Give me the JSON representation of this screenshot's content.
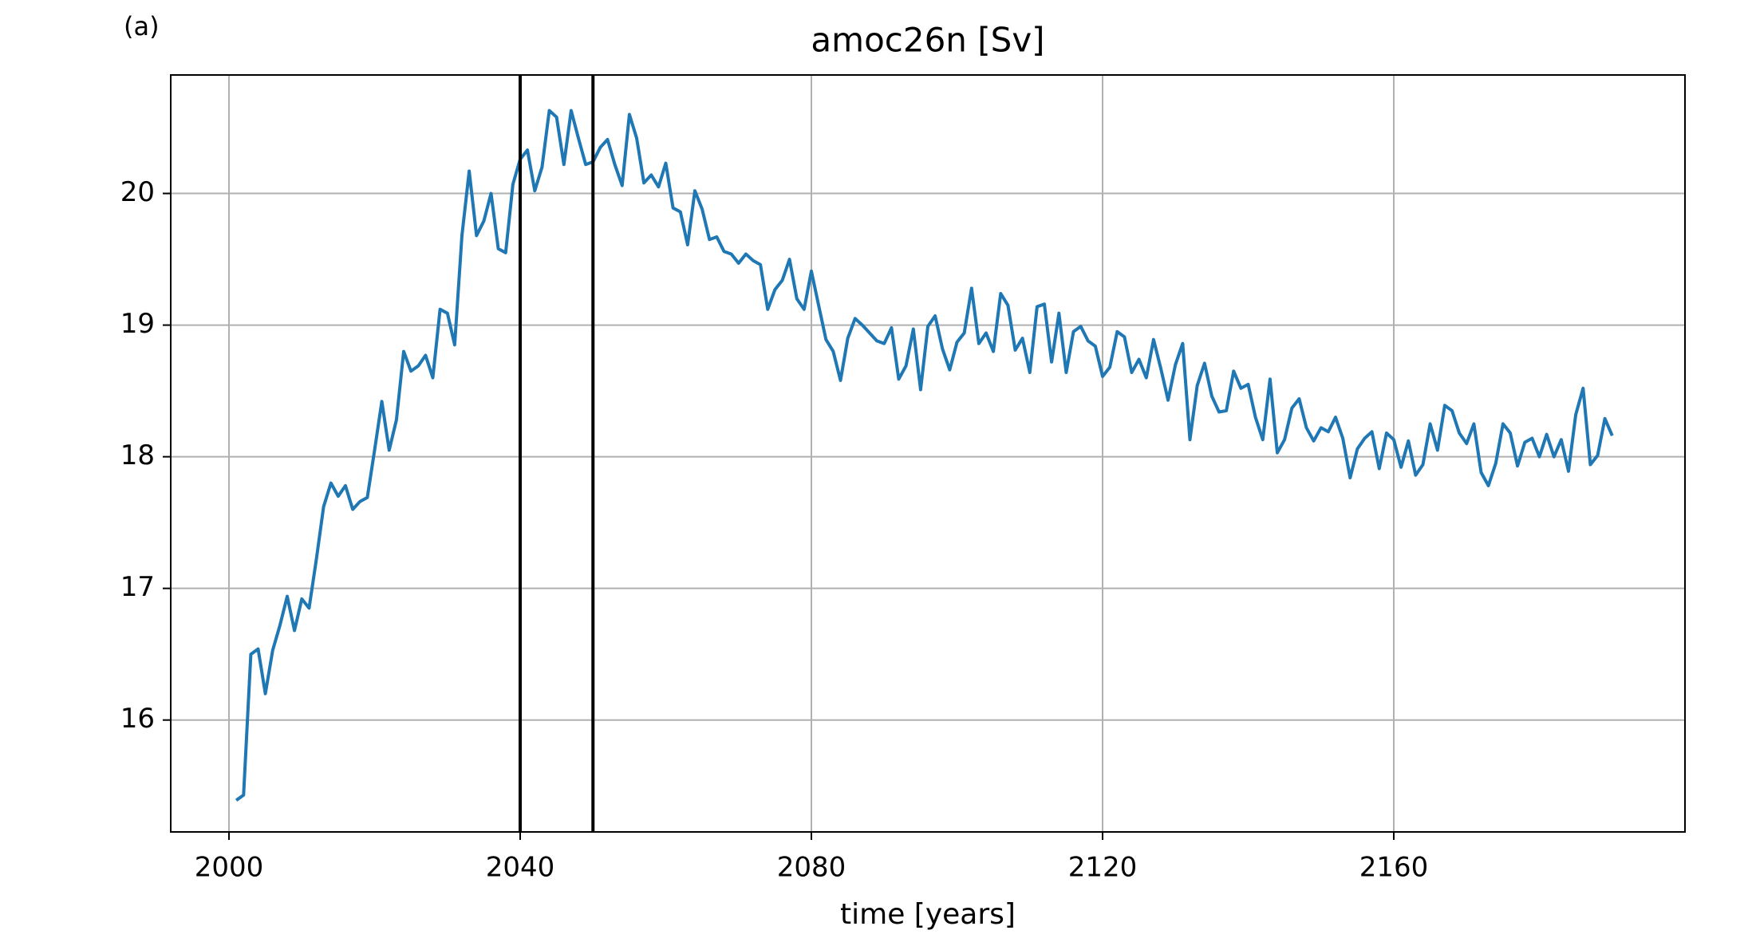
{
  "chart_data": {
    "type": "line",
    "panel_label": "(a)",
    "title": "amoc26n [Sv]",
    "x_label": "time [years]",
    "x": [
      2001,
      2002,
      2003,
      2004,
      2005,
      2006,
      2007,
      2008,
      2009,
      2010,
      2011,
      2012,
      2013,
      2014,
      2015,
      2016,
      2017,
      2018,
      2019,
      2020,
      2021,
      2022,
      2023,
      2024,
      2025,
      2026,
      2027,
      2028,
      2029,
      2030,
      2031,
      2032,
      2033,
      2034,
      2035,
      2036,
      2037,
      2038,
      2039,
      2040,
      2041,
      2042,
      2043,
      2044,
      2045,
      2046,
      2047,
      2048,
      2049,
      2050,
      2051,
      2052,
      2053,
      2054,
      2055,
      2056,
      2057,
      2058,
      2059,
      2060,
      2061,
      2062,
      2063,
      2064,
      2065,
      2066,
      2067,
      2068,
      2069,
      2070,
      2071,
      2072,
      2073,
      2074,
      2075,
      2076,
      2077,
      2078,
      2079,
      2080,
      2081,
      2082,
      2083,
      2084,
      2085,
      2086,
      2087,
      2088,
      2089,
      2090,
      2091,
      2092,
      2093,
      2094,
      2095,
      2096,
      2097,
      2098,
      2099,
      2100,
      2101,
      2102,
      2103,
      2104,
      2105,
      2106,
      2107,
      2108,
      2109,
      2110,
      2111,
      2112,
      2113,
      2114,
      2115,
      2116,
      2117,
      2118,
      2119,
      2120,
      2121,
      2122,
      2123,
      2124,
      2125,
      2126,
      2127,
      2128,
      2129,
      2130,
      2131,
      2132,
      2133,
      2134,
      2135,
      2136,
      2137,
      2138,
      2139,
      2140,
      2141,
      2142,
      2143,
      2144,
      2145,
      2146,
      2147,
      2148,
      2149,
      2150,
      2151,
      2152,
      2153,
      2154,
      2155,
      2156,
      2157,
      2158,
      2159,
      2160,
      2161,
      2162,
      2163,
      2164,
      2165,
      2166,
      2167,
      2168,
      2169,
      2170,
      2171,
      2172,
      2173,
      2174,
      2175,
      2176,
      2177,
      2178,
      2179,
      2180,
      2181,
      2182,
      2183,
      2184,
      2185,
      2186,
      2187,
      2188,
      2189,
      2190
    ],
    "series": [
      {
        "color": "#1f77b4",
        "values": [
          15.39,
          15.43,
          16.5,
          16.54,
          16.2,
          16.53,
          16.72,
          16.94,
          16.68,
          16.92,
          16.85,
          17.22,
          17.62,
          17.8,
          17.7,
          17.78,
          17.6,
          17.66,
          17.69,
          18.05,
          18.42,
          18.05,
          18.28,
          18.8,
          18.65,
          18.69,
          18.77,
          18.6,
          19.12,
          19.09,
          18.85,
          19.68,
          20.17,
          19.68,
          19.79,
          20.0,
          19.58,
          19.55,
          20.07,
          20.26,
          20.33,
          20.02,
          20.2,
          20.63,
          20.58,
          20.22,
          20.63,
          20.42,
          20.22,
          20.24,
          20.35,
          20.41,
          20.22,
          20.06,
          20.6,
          20.42,
          20.08,
          20.14,
          20.05,
          20.23,
          19.89,
          19.86,
          19.61,
          20.02,
          19.88,
          19.65,
          19.67,
          19.56,
          19.54,
          19.47,
          19.54,
          19.49,
          19.46,
          19.12,
          19.27,
          19.34,
          19.5,
          19.2,
          19.12,
          19.41,
          19.15,
          18.89,
          18.8,
          18.58,
          18.9,
          19.05,
          19.0,
          18.94,
          18.88,
          18.86,
          18.98,
          18.59,
          18.69,
          18.97,
          18.51,
          18.99,
          19.07,
          18.82,
          18.66,
          18.87,
          18.94,
          19.28,
          18.86,
          18.94,
          18.8,
          19.24,
          19.15,
          18.81,
          18.9,
          18.64,
          19.14,
          19.16,
          18.72,
          19.09,
          18.64,
          18.95,
          18.99,
          18.88,
          18.84,
          18.61,
          18.68,
          18.95,
          18.91,
          18.64,
          18.74,
          18.6,
          18.89,
          18.67,
          18.43,
          18.7,
          18.86,
          18.13,
          18.54,
          18.71,
          18.46,
          18.34,
          18.35,
          18.65,
          18.52,
          18.55,
          18.3,
          18.13,
          18.59,
          18.03,
          18.13,
          18.37,
          18.44,
          18.22,
          18.12,
          18.22,
          18.19,
          18.3,
          18.14,
          17.84,
          18.06,
          18.14,
          18.19,
          17.91,
          18.18,
          18.13,
          17.92,
          18.12,
          17.86,
          17.94,
          18.25,
          18.05,
          18.39,
          18.35,
          18.18,
          18.1,
          18.25,
          17.88,
          17.78,
          17.95,
          18.25,
          18.18,
          17.93,
          18.11,
          18.14,
          18.0,
          18.17,
          18.0,
          18.13,
          17.89,
          18.32,
          18.52,
          17.94,
          18.01,
          18.29,
          18.16
        ]
      }
    ],
    "vlines": [
      2040,
      2050
    ],
    "vline_color": "#000000",
    "xlim": [
      1992,
      2200
    ],
    "xticks": [
      2000,
      2040,
      2080,
      2120,
      2160
    ],
    "ylim": [
      15.15,
      20.9
    ],
    "yticks": [
      16,
      17,
      18,
      19,
      20
    ],
    "grid": true
  }
}
